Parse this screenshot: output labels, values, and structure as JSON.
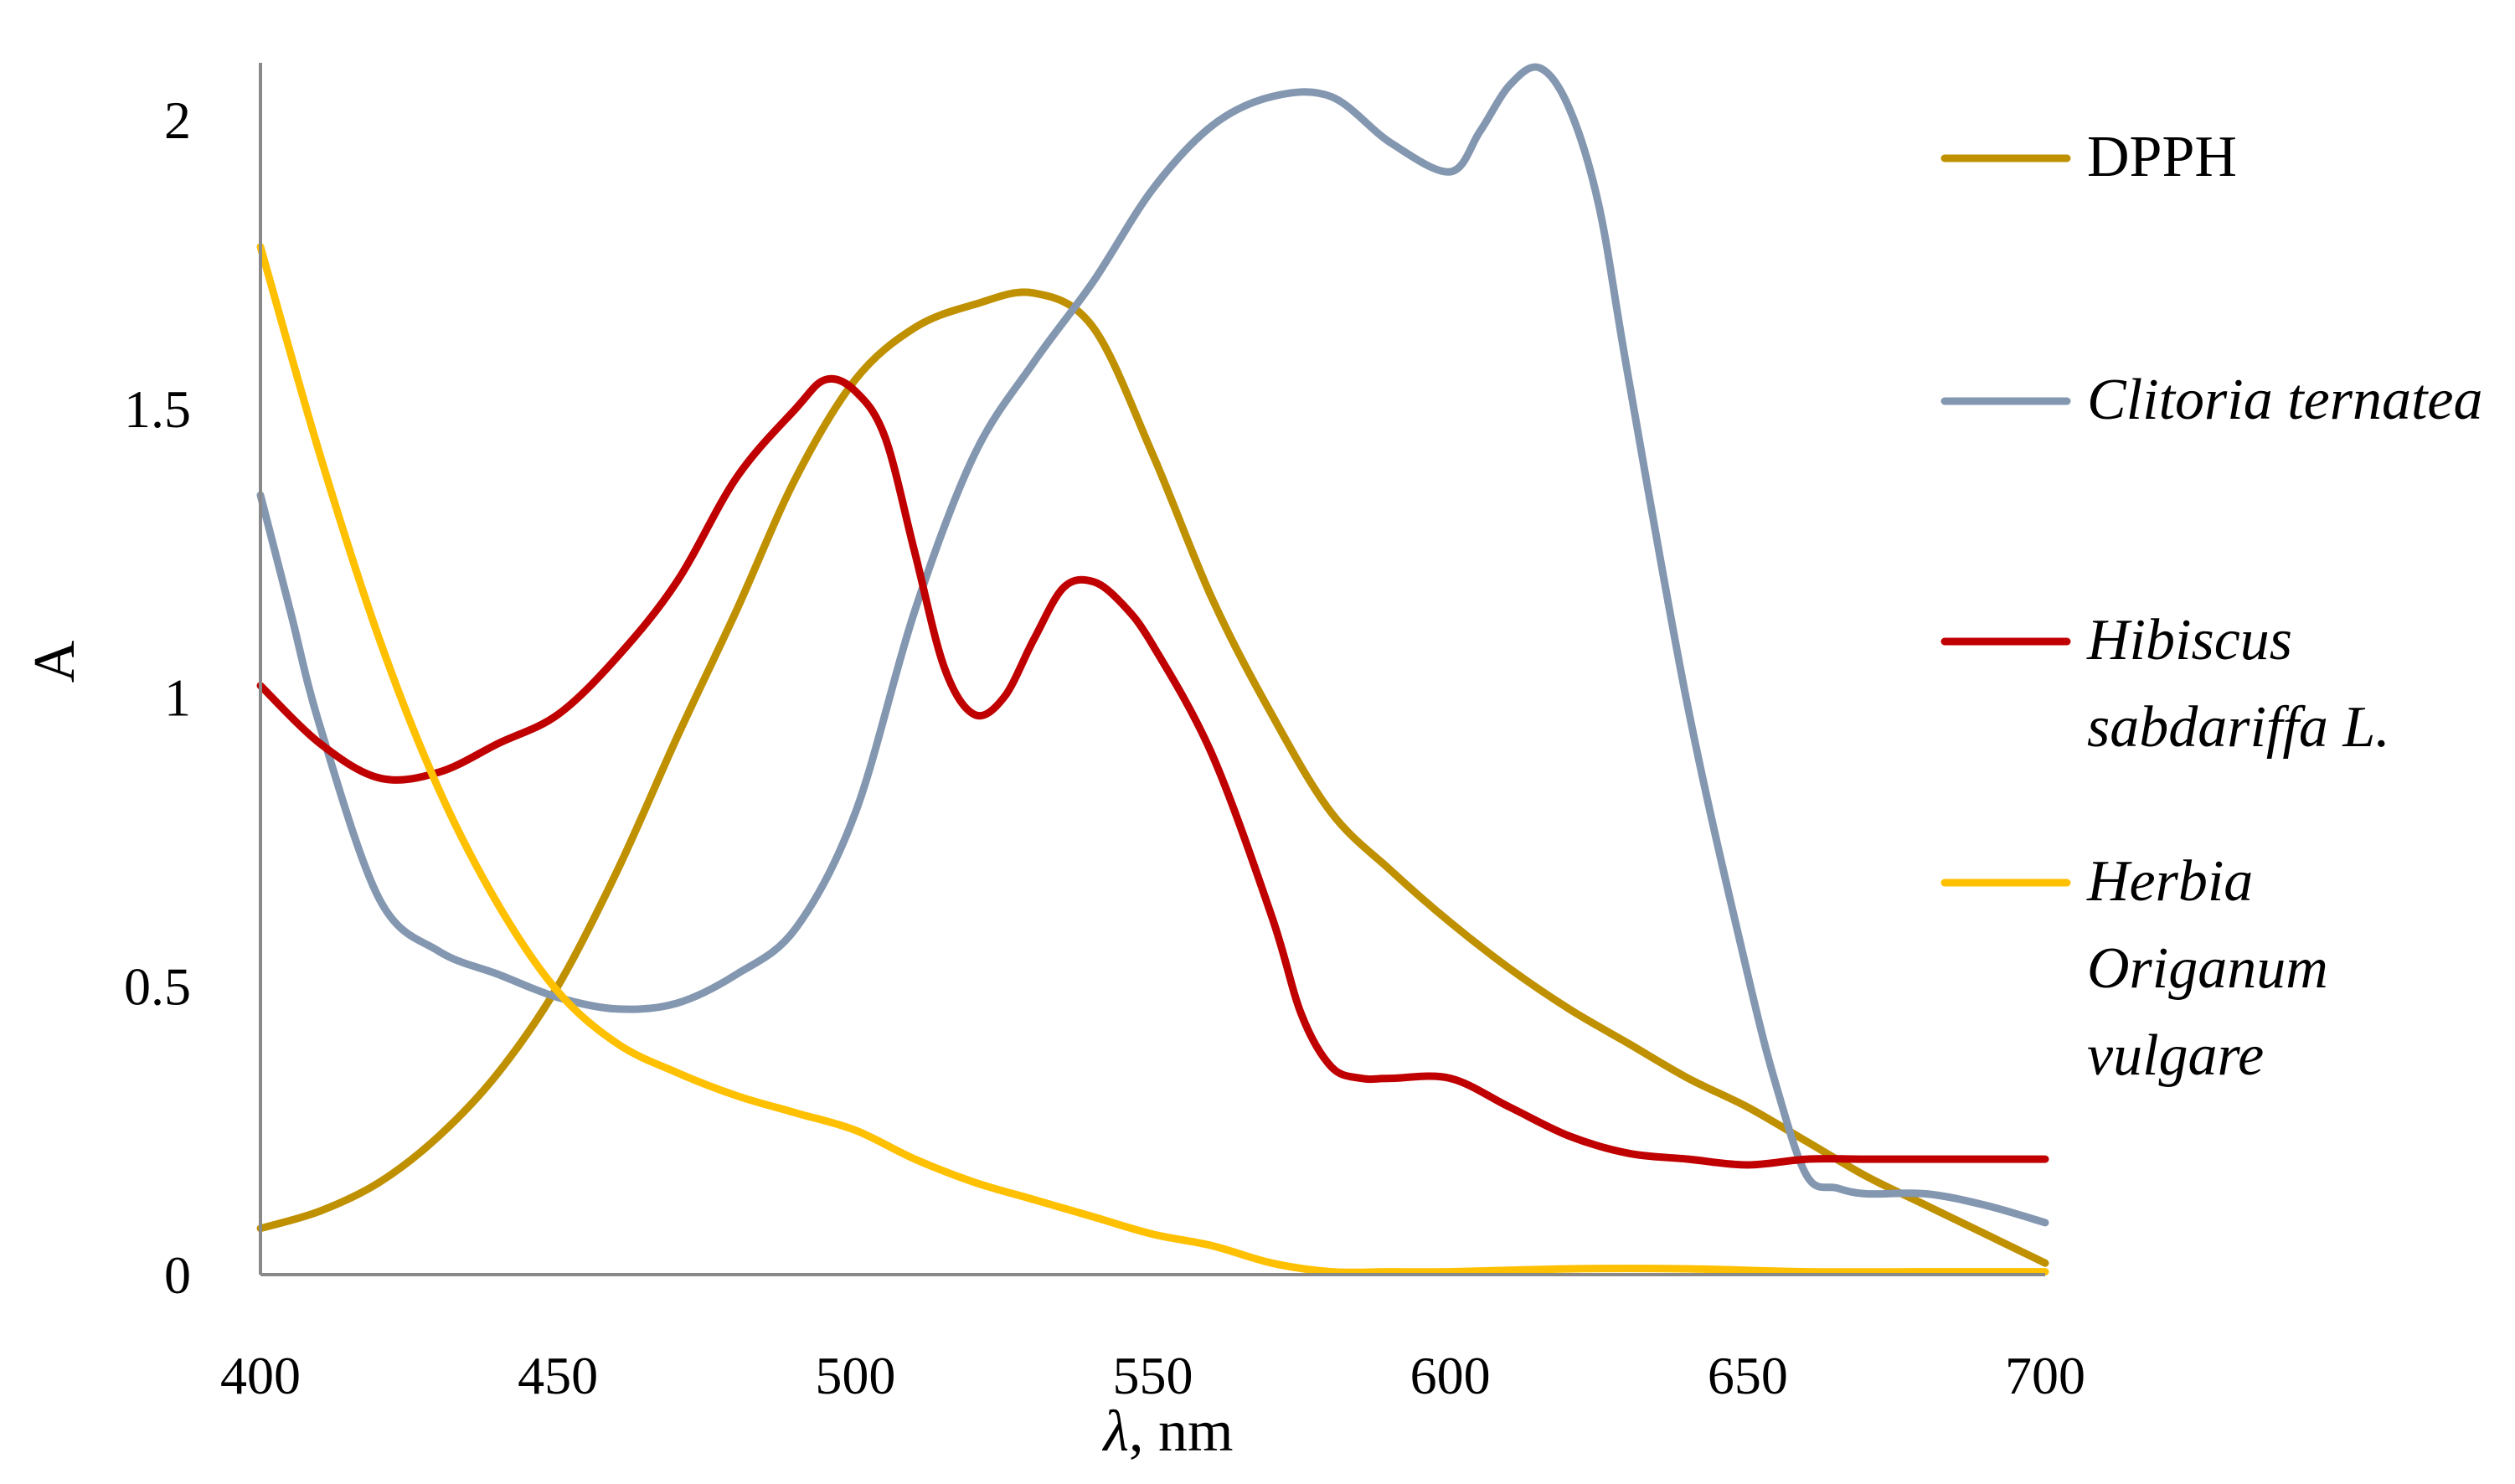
{
  "chart_data": {
    "type": "line",
    "title": "",
    "xlabel_italic": "λ",
    "xlabel_rest": ", nm",
    "ylabel": "A",
    "xlim": [
      400,
      700
    ],
    "ylim": [
      0,
      2.2
    ],
    "x_ticks": [
      "400",
      "450",
      "500",
      "550",
      "600",
      "650",
      "700"
    ],
    "y_ticks": [
      "0",
      "0.5",
      "1",
      "1.5",
      "2"
    ],
    "grid": false,
    "legend_position": "right",
    "series": [
      {
        "name": "DPPH",
        "legend_lines": [
          "DPPH"
        ],
        "italic": false,
        "color": "#BF9000",
        "x": [
          400,
          410,
          420,
          430,
          440,
          450,
          460,
          470,
          480,
          490,
          500,
          510,
          520,
          530,
          540,
          550,
          560,
          570,
          580,
          590,
          600,
          610,
          620,
          630,
          640,
          650,
          660,
          670,
          680,
          690,
          700
        ],
        "y": [
          0.08,
          0.11,
          0.16,
          0.24,
          0.35,
          0.5,
          0.7,
          0.93,
          1.15,
          1.38,
          1.55,
          1.64,
          1.68,
          1.7,
          1.64,
          1.42,
          1.17,
          0.97,
          0.8,
          0.7,
          0.61,
          0.53,
          0.46,
          0.4,
          0.34,
          0.29,
          0.23,
          0.17,
          0.12,
          0.07,
          0.02
        ]
      },
      {
        "name": "Clitoria ternatea",
        "legend_lines": [
          "Clitoria ternatea"
        ],
        "italic": true,
        "color": "#8497B0",
        "x": [
          400,
          405,
          410,
          420,
          430,
          440,
          450,
          460,
          470,
          480,
          490,
          500,
          510,
          520,
          530,
          540,
          550,
          560,
          570,
          580,
          590,
          600,
          605,
          610,
          615,
          620,
          625,
          630,
          640,
          650,
          655,
          660,
          665,
          670,
          680,
          690,
          700
        ],
        "y": [
          1.35,
          1.15,
          0.95,
          0.65,
          0.56,
          0.52,
          0.48,
          0.46,
          0.47,
          0.52,
          0.6,
          0.8,
          1.15,
          1.42,
          1.58,
          1.72,
          1.88,
          1.99,
          2.04,
          2.04,
          1.96,
          1.91,
          1.98,
          2.06,
          2.09,
          2.02,
          1.85,
          1.55,
          0.98,
          0.52,
          0.32,
          0.17,
          0.15,
          0.14,
          0.14,
          0.12,
          0.09
        ]
      },
      {
        "name": "Hibiscus sabdariffa L.",
        "legend_lines": [
          "Hibiscus",
          "sabdariffa L."
        ],
        "italic": true,
        "color": "#C00000",
        "x": [
          400,
          410,
          420,
          430,
          440,
          450,
          460,
          470,
          480,
          490,
          495,
          500,
          505,
          510,
          515,
          520,
          525,
          530,
          535,
          540,
          545,
          550,
          560,
          570,
          575,
          580,
          585,
          590,
          600,
          610,
          620,
          630,
          640,
          650,
          660,
          670,
          680,
          690,
          700
        ],
        "y": [
          1.02,
          0.92,
          0.86,
          0.87,
          0.92,
          0.97,
          1.07,
          1.2,
          1.38,
          1.5,
          1.55,
          1.53,
          1.45,
          1.25,
          1.05,
          0.97,
          1.0,
          1.1,
          1.19,
          1.2,
          1.16,
          1.09,
          0.9,
          0.62,
          0.45,
          0.36,
          0.34,
          0.34,
          0.34,
          0.29,
          0.24,
          0.21,
          0.2,
          0.19,
          0.2,
          0.2,
          0.2,
          0.2,
          0.2
        ]
      },
      {
        "name": "Herbia Origanum vulgare",
        "legend_lines": [
          "Herbia",
          "Origanum",
          "vulgare"
        ],
        "italic": true,
        "color": "#FFC000",
        "x": [
          400,
          410,
          420,
          430,
          440,
          450,
          460,
          470,
          480,
          490,
          500,
          510,
          520,
          530,
          540,
          550,
          560,
          570,
          580,
          590,
          600,
          620,
          640,
          660,
          680,
          700
        ],
        "y": [
          1.78,
          1.42,
          1.1,
          0.84,
          0.64,
          0.49,
          0.4,
          0.35,
          0.31,
          0.28,
          0.25,
          0.2,
          0.16,
          0.13,
          0.1,
          0.07,
          0.05,
          0.02,
          0.005,
          0.005,
          0.005,
          0.01,
          0.01,
          0.005,
          0.005,
          0.005
        ]
      }
    ]
  }
}
